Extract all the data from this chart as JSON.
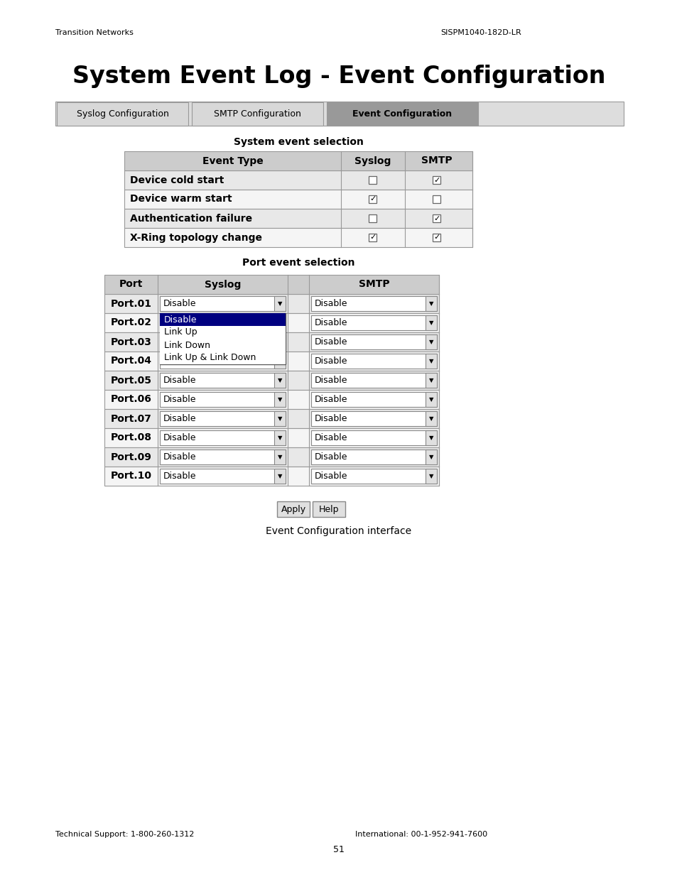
{
  "header_left": "Transition Networks",
  "header_right": "SISPM1040-182D-LR",
  "title": "System Event Log - Event Configuration",
  "tabs": [
    "Syslog Configuration",
    "SMTP Configuration",
    "Event Configuration"
  ],
  "active_tab": 2,
  "system_section_title": "System event selection",
  "system_table_headers": [
    "Event Type",
    "Syslog",
    "SMTP"
  ],
  "system_events": [
    {
      "name": "Device cold start",
      "syslog": false,
      "smtp": true
    },
    {
      "name": "Device warm start",
      "syslog": true,
      "smtp": false
    },
    {
      "name": "Authentication failure",
      "syslog": false,
      "smtp": true
    },
    {
      "name": "X-Ring topology change",
      "syslog": true,
      "smtp": true
    }
  ],
  "port_section_title": "Port event selection",
  "port_table_headers": [
    "Port",
    "Syslog",
    "SMTP"
  ],
  "ports": [
    "Port.01",
    "Port.02",
    "Port.03",
    "Port.04",
    "Port.05",
    "Port.06",
    "Port.07",
    "Port.08",
    "Port.09",
    "Port.10"
  ],
  "dropdown_value": "Disable",
  "dropdown_options": [
    "Disable",
    "Link Up",
    "Link Down",
    "Link Up & Link Down"
  ],
  "dropdown_open_port_idx": 1,
  "buttons": [
    "Apply",
    "Help"
  ],
  "caption": "Event Configuration interface",
  "footer_left": "Technical Support: 1-800-260-1312",
  "footer_right": "International: 00-1-952-941-7600",
  "page_number": "51",
  "bg_color": "#ffffff",
  "table_header_bg": "#cccccc",
  "table_row_bg_light": "#e8e8e8",
  "table_row_bg_white": "#f5f5f5",
  "tab_active_bg": "#999999",
  "tab_inactive_bg": "#d8d8d8",
  "border_color": "#999999",
  "dropdown_open_bg": "#000080",
  "dropdown_open_fg": "#ffffff"
}
